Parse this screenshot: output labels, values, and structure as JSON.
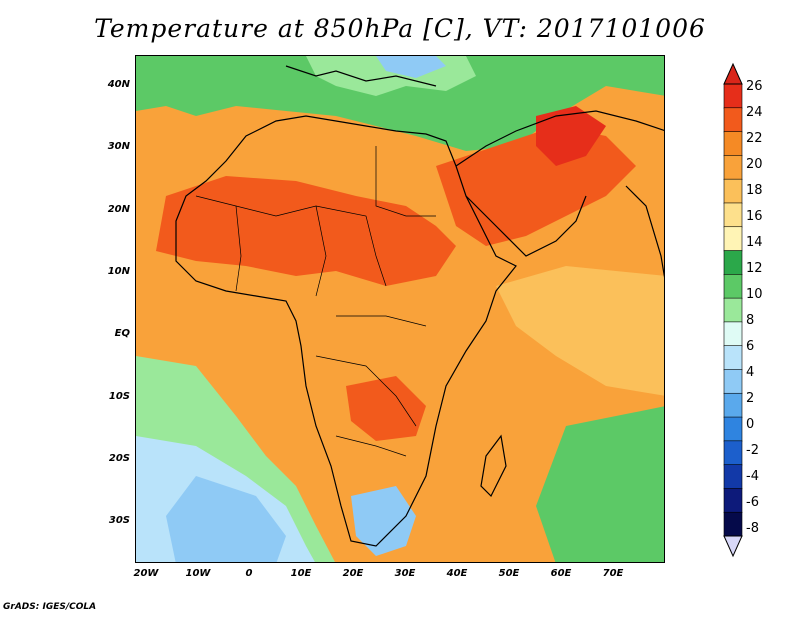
{
  "title": "Temperature at 850hPa [C], VT: 2017101006",
  "credit": "GrADS: IGES/COLA",
  "map": {
    "lat_ticks": [
      "40N",
      "30N",
      "20N",
      "10N",
      "EQ",
      "10S",
      "20S",
      "30S"
    ],
    "lon_ticks": [
      "20W",
      "10W",
      "0",
      "10E",
      "20E",
      "30E",
      "40E",
      "50E",
      "60E",
      "70E"
    ],
    "lon_range": [
      -22,
      80
    ],
    "lat_range": [
      -36,
      45
    ]
  },
  "colorbar": {
    "levels": [
      "26",
      "24",
      "22",
      "20",
      "18",
      "16",
      "14",
      "12",
      "10",
      "8",
      "6",
      "4",
      "2",
      "0",
      "-2",
      "-4",
      "-6",
      "-8"
    ],
    "colors": [
      "#e62e1a",
      "#f25a1c",
      "#f58a25",
      "#f9a23a",
      "#fbc05a",
      "#fde08c",
      "#fff4b5",
      "#2ba84a",
      "#5cc966",
      "#9ae89a",
      "#dffbf5",
      "#b9e3fa",
      "#8fcaf5",
      "#5aa9ec",
      "#2f84e0",
      "#1c5fcc",
      "#1239a8",
      "#0d1a7a",
      "#050a4a"
    ],
    "top_arrow_color": "#d9261a",
    "bottom_arrow_color": "#d8d8f8"
  }
}
